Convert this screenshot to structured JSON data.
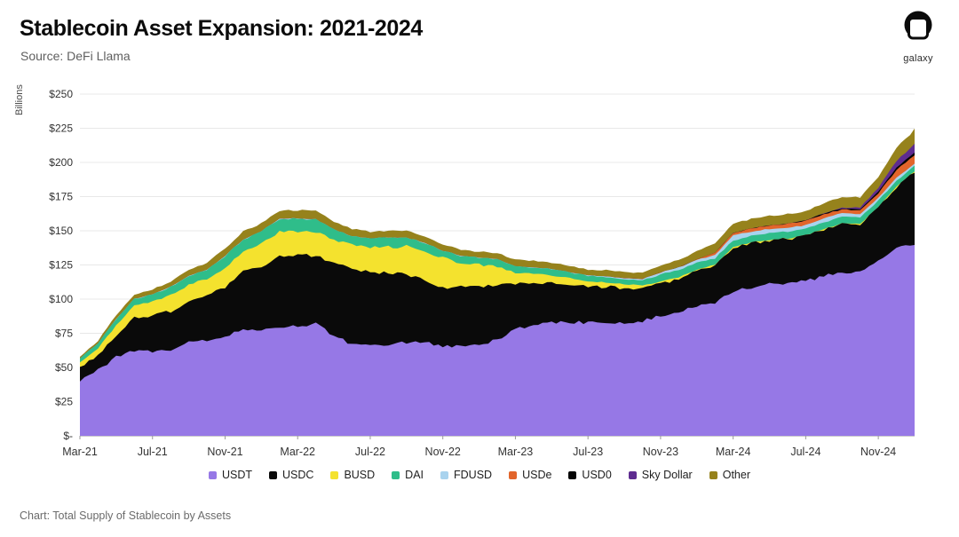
{
  "header": {
    "title": "Stablecoin Asset Expansion: 2021-2024",
    "source": "Source: DeFi Llama",
    "logo_text": "galaxy"
  },
  "footer": {
    "caption": "Chart: Total Supply of Stablecoin by Assets"
  },
  "chart_data": {
    "type": "area",
    "stacked": true,
    "title": "Stablecoin Asset Expansion: 2021-2024",
    "xlabel": "",
    "ylabel": "Billions",
    "ylim": [
      0,
      250
    ],
    "ytick_step": 25,
    "ytick_labels": [
      "$-",
      "$25",
      "$50",
      "$75",
      "$100",
      "$125",
      "$150",
      "$175",
      "$200",
      "$225",
      "$250"
    ],
    "x_tick_labels": [
      "Mar-21",
      "Jul-21",
      "Nov-21",
      "Mar-22",
      "Jul-22",
      "Nov-22",
      "Mar-23",
      "Jul-23",
      "Nov-23",
      "Mar-24",
      "Jul-24",
      "Nov-24"
    ],
    "x_tick_every": 4,
    "grid": "horizontal",
    "legend_position": "bottom",
    "categories": [
      "Mar-21",
      "Apr-21",
      "May-21",
      "Jun-21",
      "Jul-21",
      "Aug-21",
      "Sep-21",
      "Oct-21",
      "Nov-21",
      "Dec-21",
      "Jan-22",
      "Feb-22",
      "Mar-22",
      "Apr-22",
      "May-22",
      "Jun-22",
      "Jul-22",
      "Aug-22",
      "Sep-22",
      "Oct-22",
      "Nov-22",
      "Dec-22",
      "Jan-23",
      "Feb-23",
      "Mar-23",
      "Apr-23",
      "May-23",
      "Jun-23",
      "Jul-23",
      "Aug-23",
      "Sep-23",
      "Oct-23",
      "Nov-23",
      "Dec-23",
      "Jan-24",
      "Feb-24",
      "Mar-24",
      "Apr-24",
      "May-24",
      "Jun-24",
      "Jul-24",
      "Aug-24",
      "Sep-24",
      "Oct-24",
      "Nov-24",
      "Dec-24",
      "Jan-25"
    ],
    "series": [
      {
        "name": "USDT",
        "color": "#9678E6",
        "values": [
          40,
          48,
          58,
          62,
          62,
          63,
          68,
          70,
          73,
          78,
          78,
          79,
          80,
          82,
          73,
          67,
          66,
          67,
          68,
          69,
          65,
          66,
          67,
          70,
          78,
          81,
          83,
          83,
          83,
          83,
          83,
          84,
          88,
          91,
          95,
          97,
          106,
          108,
          111,
          112,
          113,
          117,
          119,
          120,
          128,
          138,
          140
        ]
      },
      {
        "name": "USDC",
        "color": "#0a0a0a",
        "values": [
          10,
          11,
          15,
          24,
          26,
          28,
          30,
          32,
          36,
          42,
          45,
          52,
          52,
          50,
          53,
          55,
          54,
          52,
          50,
          45,
          43,
          44,
          42,
          41,
          33,
          31,
          29,
          28,
          26,
          26,
          25,
          24,
          23,
          24,
          26,
          28,
          32,
          33,
          32,
          32,
          33,
          34,
          36,
          35,
          39,
          44,
          53
        ]
      },
      {
        "name": "BUSD",
        "color": "#F4E22E",
        "values": [
          3.5,
          5,
          8,
          9,
          10,
          12,
          12.5,
          13,
          14,
          14.5,
          17,
          18,
          17.5,
          17.5,
          18,
          17.5,
          17.8,
          19,
          20.5,
          21.5,
          22,
          16.5,
          16,
          13,
          8,
          6.5,
          5.5,
          4.3,
          3.8,
          3.3,
          3,
          2.2,
          1.7,
          1,
          0.5,
          0.2,
          0.1,
          0.1,
          0.1,
          0.1,
          0.1,
          0.1,
          0.1,
          0.1,
          0.1,
          0.1,
          0.1
        ]
      },
      {
        "name": "DAI",
        "color": "#2FBD8A",
        "values": [
          3,
          3.5,
          4.5,
          5,
          5.5,
          6,
          6.5,
          6.5,
          8.5,
          9,
          9.5,
          9.8,
          9.5,
          8.8,
          6.8,
          6.3,
          6.5,
          7,
          6.3,
          5.7,
          5.2,
          5.1,
          5.2,
          5.2,
          4.9,
          4.7,
          4.5,
          4.3,
          4.2,
          3.9,
          3.8,
          3.6,
          5.3,
          5.3,
          4.9,
          4.6,
          4.9,
          5,
          5.1,
          5.1,
          5.2,
          5.1,
          5,
          4.6,
          4.8,
          4.5,
          4.5
        ]
      },
      {
        "name": "FDUSD",
        "color": "#A9D3EE",
        "values": [
          0,
          0,
          0,
          0,
          0,
          0,
          0,
          0,
          0,
          0,
          0,
          0,
          0,
          0,
          0,
          0,
          0,
          0,
          0,
          0,
          0,
          0,
          0,
          0,
          0,
          0,
          0,
          0,
          0.2,
          0.4,
          0.6,
          1,
          1.5,
          1.9,
          2.2,
          2.7,
          3.5,
          3.3,
          3.1,
          2.9,
          2.7,
          2.9,
          2.8,
          2.4,
          2.2,
          2,
          1.8
        ]
      },
      {
        "name": "USDe",
        "color": "#E2652B",
        "values": [
          0,
          0,
          0,
          0,
          0,
          0,
          0,
          0,
          0,
          0,
          0,
          0,
          0,
          0,
          0,
          0,
          0,
          0,
          0,
          0,
          0,
          0,
          0,
          0,
          0,
          0,
          0,
          0,
          0,
          0,
          0,
          0,
          0,
          0.1,
          0.3,
          1.4,
          1.9,
          2.3,
          2.6,
          3,
          3.3,
          3.1,
          2.7,
          2.7,
          3.5,
          5.9,
          6
        ]
      },
      {
        "name": "USD0",
        "color": "#050505",
        "values": [
          0,
          0,
          0,
          0,
          0,
          0,
          0,
          0,
          0,
          0,
          0,
          0,
          0,
          0,
          0,
          0,
          0,
          0,
          0,
          0,
          0,
          0,
          0,
          0,
          0,
          0,
          0,
          0,
          0,
          0,
          0,
          0,
          0,
          0,
          0,
          0,
          0,
          0,
          0,
          0,
          0.3,
          0.5,
          0.7,
          1,
          1.3,
          1.7,
          1.7
        ]
      },
      {
        "name": "Sky Dollar",
        "color": "#5E2C90",
        "values": [
          0,
          0,
          0,
          0,
          0,
          0,
          0,
          0,
          0,
          0,
          0,
          0,
          0,
          0,
          0,
          0,
          0,
          0,
          0,
          0,
          0,
          0,
          0,
          0,
          0,
          0,
          0,
          0,
          0,
          0,
          0,
          0,
          0,
          0,
          0,
          0,
          0,
          0,
          0,
          0,
          0,
          0,
          0.5,
          1.2,
          2.5,
          4.8,
          6.5
        ]
      },
      {
        "name": "Other",
        "color": "#96821C",
        "values": [
          1.5,
          2,
          3,
          3.5,
          3.5,
          4,
          4.5,
          5,
          5.5,
          6,
          6,
          6,
          6,
          6.5,
          6,
          5.5,
          5,
          5,
          5,
          5,
          5,
          4.5,
          4.5,
          4.5,
          5,
          5,
          4.5,
          4.5,
          4.5,
          4.5,
          4.5,
          4.5,
          5,
          5.5,
          6,
          6.5,
          7,
          7,
          7,
          7,
          7,
          7.5,
          7.5,
          7.5,
          8,
          9.5,
          10.5
        ]
      }
    ]
  }
}
